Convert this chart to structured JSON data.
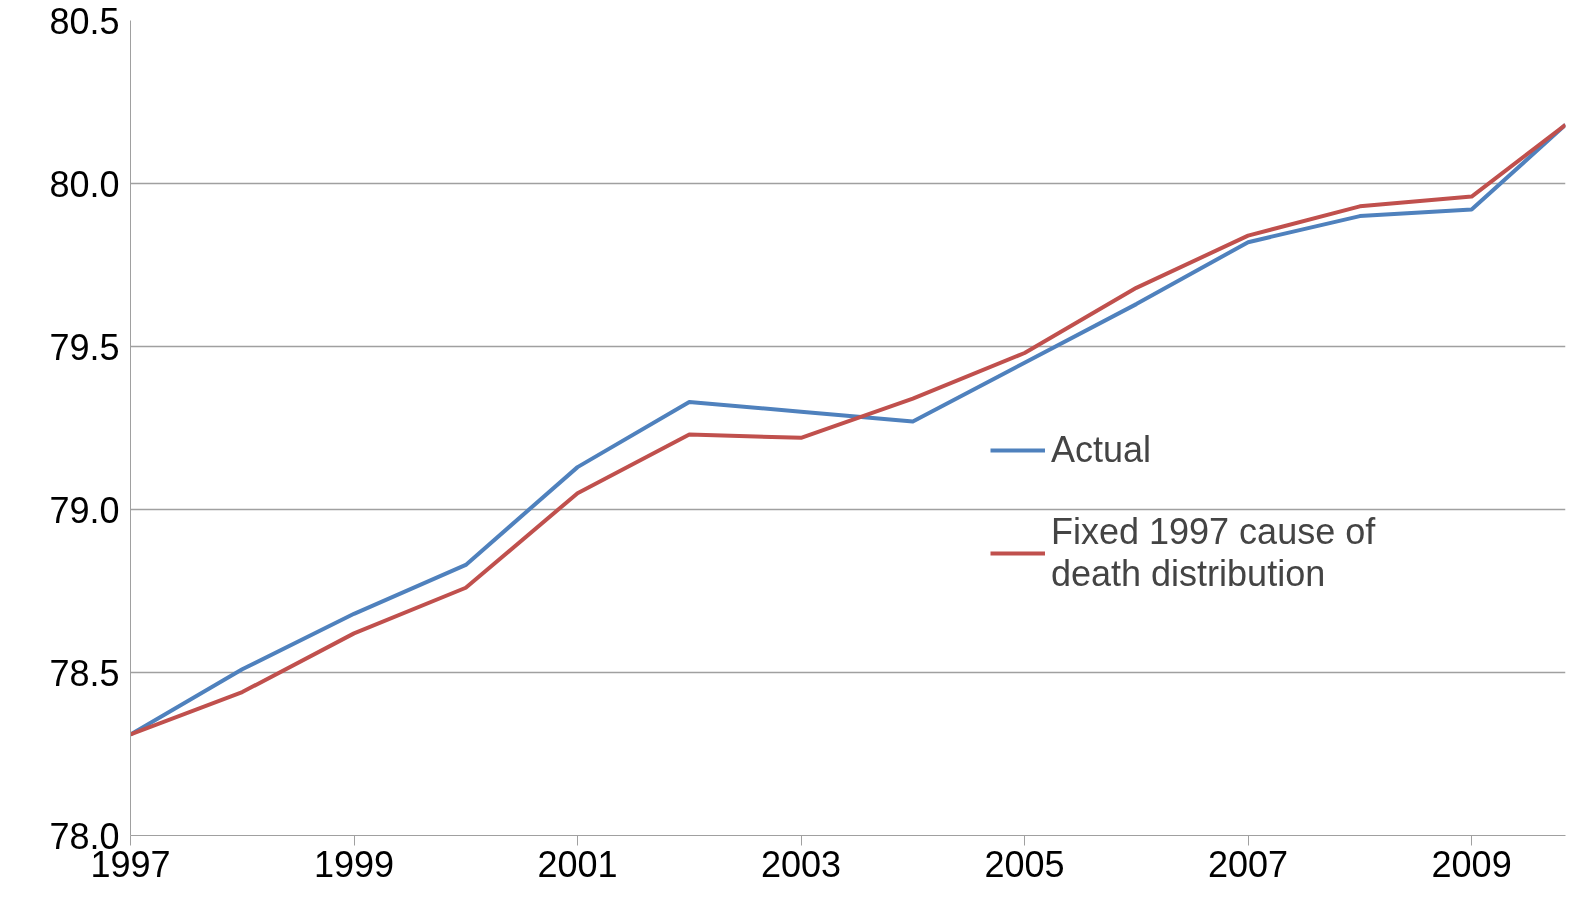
{
  "chart_data": {
    "type": "line",
    "x": [
      1997,
      1998,
      1999,
      2000,
      2001,
      2002,
      2003,
      2004,
      2005,
      2006,
      2007,
      2008,
      2009,
      2009.84
    ],
    "series": [
      {
        "name": "Actual",
        "color": "#4f81bd",
        "values": [
          78.31,
          78.51,
          78.68,
          78.83,
          79.13,
          79.33,
          79.3,
          79.27,
          79.45,
          79.63,
          79.82,
          79.9,
          79.92,
          80.18
        ]
      },
      {
        "name": "Fixed 1997 cause of death distribution",
        "color": "#c0504d",
        "values": [
          78.31,
          78.44,
          78.62,
          78.76,
          79.05,
          79.23,
          79.22,
          79.34,
          79.48,
          79.68,
          79.84,
          79.93,
          79.96,
          80.18
        ]
      }
    ],
    "xlim": [
      1997,
      2009.84
    ],
    "xticks": [
      1997,
      1999,
      2001,
      2003,
      2005,
      2007,
      2009
    ],
    "ylim": [
      78.0,
      80.5
    ],
    "yticks": [
      {
        "value": 78.0,
        "label": "78.0"
      },
      {
        "value": 78.5,
        "label": "78.5"
      },
      {
        "value": 79.0,
        "label": "79.0"
      },
      {
        "value": 79.5,
        "label": "79.5"
      },
      {
        "value": 80.0,
        "label": "80.0"
      },
      {
        "value": 80.5,
        "label": "80.5"
      }
    ],
    "grid": "y",
    "legend": "right",
    "marker": "none",
    "line_style": "solid"
  }
}
